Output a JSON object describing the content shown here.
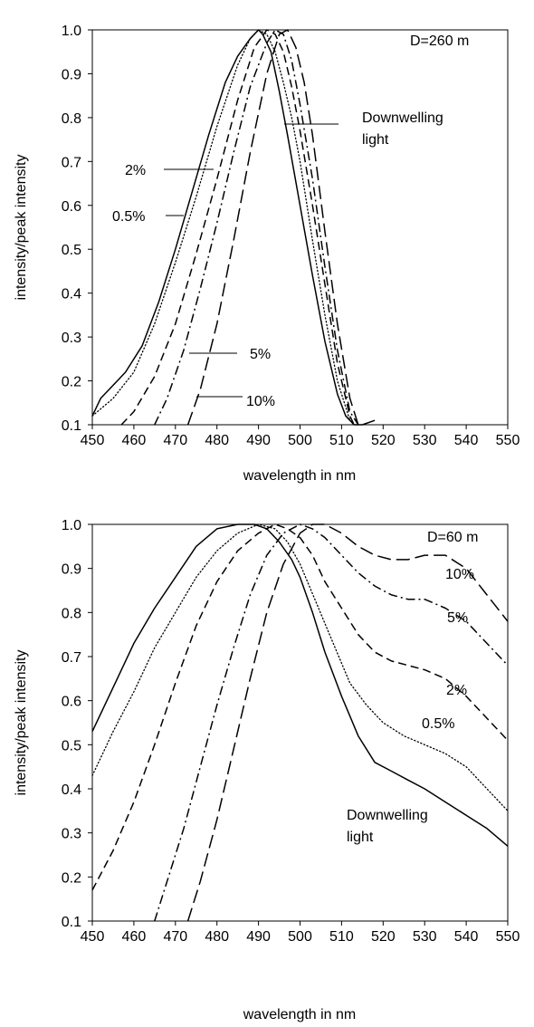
{
  "chart_data": [
    {
      "type": "line",
      "annotation": "D=260 m",
      "xlabel": "wavelength in nm",
      "ylabel": "intensity/peak intensity",
      "xlim": [
        450,
        550
      ],
      "ylim": [
        0.1,
        1.0
      ],
      "xticks": [
        "450",
        "460",
        "470",
        "480",
        "490",
        "500",
        "510",
        "520",
        "530",
        "540",
        "550"
      ],
      "yticks": [
        "0.1",
        "0.2",
        "0.3",
        "0.4",
        "0.5",
        "0.6",
        "0.7",
        "0.8",
        "0.9",
        "1.0"
      ],
      "grid": false,
      "series": [
        {
          "name": "Downwelling light",
          "style": "solid",
          "x": [
            450,
            452,
            455,
            458,
            462,
            466,
            470,
            474,
            478,
            482,
            485,
            488,
            490,
            491,
            493,
            495,
            497,
            500,
            503,
            506,
            509,
            511,
            513,
            515,
            518
          ],
          "y": [
            0.12,
            0.16,
            0.19,
            0.22,
            0.28,
            0.38,
            0.5,
            0.63,
            0.76,
            0.88,
            0.94,
            0.98,
            1.0,
            0.99,
            0.95,
            0.86,
            0.76,
            0.6,
            0.44,
            0.29,
            0.17,
            0.12,
            0.1,
            0.1,
            0.11
          ]
        },
        {
          "name": "0.5%",
          "style": "dotted",
          "x": [
            450,
            455,
            460,
            465,
            470,
            475,
            480,
            485,
            488,
            490,
            492,
            494,
            496,
            498,
            500,
            503,
            506,
            509,
            512
          ],
          "y": [
            0.12,
            0.16,
            0.22,
            0.33,
            0.47,
            0.62,
            0.78,
            0.92,
            0.98,
            1.0,
            0.99,
            0.95,
            0.88,
            0.8,
            0.7,
            0.52,
            0.35,
            0.2,
            0.11
          ]
        },
        {
          "name": "2%",
          "style": "dashed",
          "x": [
            457,
            460,
            465,
            470,
            475,
            480,
            485,
            489,
            492,
            494,
            496,
            498,
            500,
            503,
            506,
            509,
            512,
            513
          ],
          "y": [
            0.1,
            0.13,
            0.21,
            0.33,
            0.49,
            0.66,
            0.84,
            0.96,
            1.0,
            0.99,
            0.95,
            0.87,
            0.77,
            0.6,
            0.42,
            0.24,
            0.12,
            0.1
          ]
        },
        {
          "name": "5%",
          "style": "dashdot",
          "x": [
            465,
            468,
            472,
            476,
            480,
            484,
            488,
            492,
            494,
            496,
            498,
            500,
            503,
            506,
            509,
            512,
            514
          ],
          "y": [
            0.1,
            0.16,
            0.27,
            0.41,
            0.56,
            0.72,
            0.87,
            0.97,
            1.0,
            0.99,
            0.93,
            0.83,
            0.66,
            0.46,
            0.27,
            0.13,
            0.1
          ]
        },
        {
          "name": "10%",
          "style": "longdash",
          "x": [
            473,
            476,
            480,
            484,
            488,
            492,
            495,
            497,
            499,
            501,
            503,
            506,
            509,
            512,
            514
          ],
          "y": [
            0.1,
            0.18,
            0.33,
            0.52,
            0.72,
            0.9,
            0.99,
            1.0,
            0.96,
            0.88,
            0.76,
            0.54,
            0.33,
            0.16,
            0.1
          ]
        }
      ],
      "labels": [
        {
          "text": "Downwelling light",
          "series": "Downwelling light"
        },
        {
          "text": "0.5%",
          "series": "0.5%"
        },
        {
          "text": "2%",
          "series": "2%"
        },
        {
          "text": "5%",
          "series": "5%"
        },
        {
          "text": "10%",
          "series": "10%"
        }
      ]
    },
    {
      "type": "line",
      "annotation": "D=60 m",
      "xlabel": "wavelength in nm",
      "ylabel": "intensity/peak intensity",
      "xlim": [
        450,
        550
      ],
      "ylim": [
        0.1,
        1.0
      ],
      "xticks": [
        "450",
        "460",
        "470",
        "480",
        "490",
        "500",
        "510",
        "520",
        "530",
        "540",
        "550"
      ],
      "yticks": [
        "0.1",
        "0.2",
        "0.3",
        "0.4",
        "0.5",
        "0.6",
        "0.7",
        "0.8",
        "0.9",
        "1.0"
      ],
      "grid": false,
      "series": [
        {
          "name": "Downwelling light",
          "style": "solid",
          "x": [
            450,
            455,
            460,
            465,
            470,
            475,
            480,
            485,
            489,
            492,
            495,
            498,
            500,
            503,
            506,
            510,
            514,
            518,
            522,
            526,
            530,
            535,
            540,
            545,
            550
          ],
          "y": [
            0.53,
            0.63,
            0.73,
            0.81,
            0.88,
            0.95,
            0.99,
            1.0,
            1.0,
            0.99,
            0.96,
            0.92,
            0.88,
            0.8,
            0.71,
            0.61,
            0.52,
            0.46,
            0.44,
            0.42,
            0.4,
            0.37,
            0.34,
            0.31,
            0.27
          ]
        },
        {
          "name": "0.5%",
          "style": "dotted",
          "x": [
            450,
            455,
            460,
            465,
            470,
            475,
            480,
            485,
            490,
            494,
            497,
            500,
            504,
            508,
            512,
            516,
            520,
            525,
            530,
            535,
            540,
            545,
            550
          ],
          "y": [
            0.43,
            0.53,
            0.62,
            0.72,
            0.8,
            0.88,
            0.94,
            0.98,
            1.0,
            0.99,
            0.96,
            0.91,
            0.82,
            0.73,
            0.64,
            0.59,
            0.55,
            0.52,
            0.5,
            0.48,
            0.45,
            0.4,
            0.35
          ]
        },
        {
          "name": "2%",
          "style": "dashed",
          "x": [
            450,
            455,
            460,
            465,
            470,
            475,
            480,
            485,
            490,
            494,
            497,
            500,
            503,
            506,
            510,
            514,
            518,
            522,
            526,
            530,
            535,
            540,
            545,
            550
          ],
          "y": [
            0.17,
            0.26,
            0.37,
            0.5,
            0.64,
            0.77,
            0.87,
            0.94,
            0.98,
            1.0,
            0.99,
            0.97,
            0.93,
            0.87,
            0.81,
            0.75,
            0.71,
            0.69,
            0.68,
            0.67,
            0.65,
            0.61,
            0.56,
            0.51
          ]
        },
        {
          "name": "5%",
          "style": "dashdot",
          "x": [
            465,
            468,
            472,
            476,
            480,
            484,
            488,
            492,
            496,
            500,
            503,
            506,
            510,
            514,
            518,
            522,
            526,
            530,
            535,
            540,
            545,
            550
          ],
          "y": [
            0.1,
            0.19,
            0.31,
            0.45,
            0.59,
            0.72,
            0.84,
            0.93,
            0.98,
            1.0,
            0.99,
            0.97,
            0.93,
            0.89,
            0.86,
            0.84,
            0.83,
            0.83,
            0.81,
            0.78,
            0.73,
            0.68
          ]
        },
        {
          "name": "10%",
          "style": "longdash",
          "x": [
            473,
            476,
            480,
            484,
            488,
            492,
            496,
            500,
            503,
            506,
            510,
            514,
            518,
            522,
            526,
            530,
            535,
            540,
            545,
            550
          ],
          "y": [
            0.1,
            0.19,
            0.33,
            0.49,
            0.65,
            0.8,
            0.91,
            0.98,
            1.0,
            1.0,
            0.98,
            0.95,
            0.93,
            0.92,
            0.92,
            0.93,
            0.93,
            0.9,
            0.84,
            0.78
          ]
        }
      ],
      "labels": [
        {
          "text": "10%",
          "series": "10%"
        },
        {
          "text": "5%",
          "series": "5%"
        },
        {
          "text": "2%",
          "series": "2%"
        },
        {
          "text": "0.5%",
          "series": "0.5%"
        },
        {
          "text": "Downwelling light",
          "series": "Downwelling light"
        }
      ]
    }
  ]
}
